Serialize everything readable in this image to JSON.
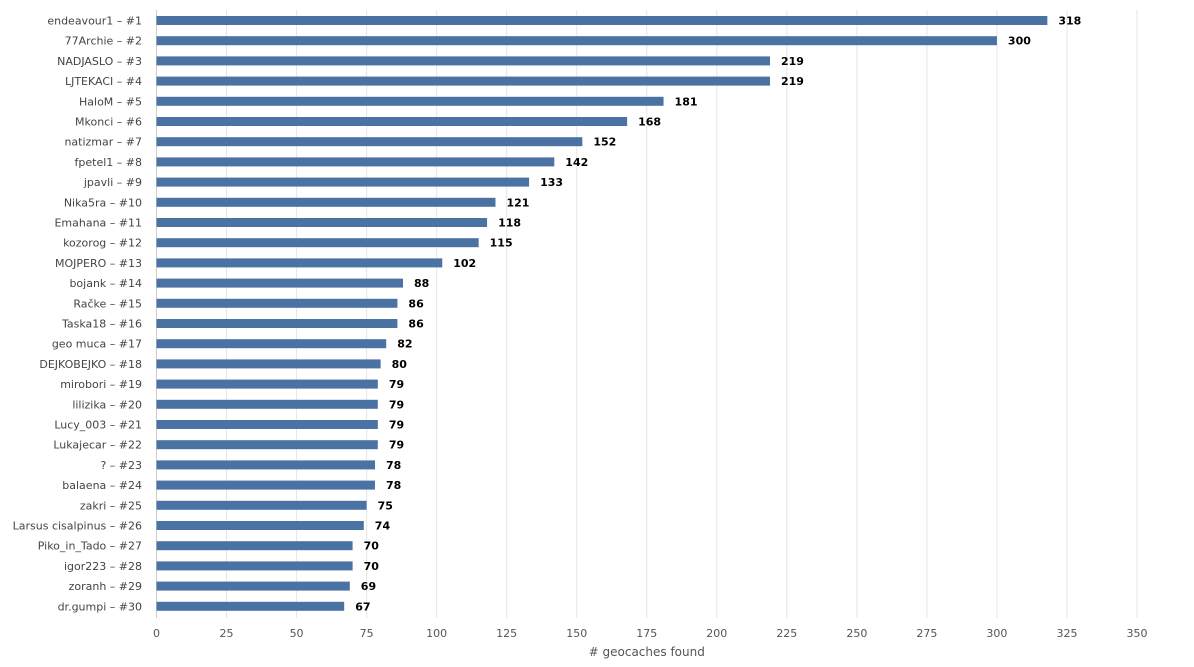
{
  "chart_data": {
    "type": "bar",
    "orientation": "horizontal",
    "title": "",
    "xlabel": "# geocaches found",
    "ylabel": "",
    "categories": [
      "endeavour1 – #1",
      "77Archie – #2",
      "NADJASLO – #3",
      "LJTEKACI – #4",
      "HaloM – #5",
      "Mkonci – #6",
      "natizmar – #7",
      "fpetel1 – #8",
      "jpavli – #9",
      "Nika5ra – #10",
      "Emahana – #11",
      "kozorog – #12",
      "MOJPERO – #13",
      "bojank – #14",
      "Račke – #15",
      "Taska18 – #16",
      "geo muca – #17",
      "DEJKOBEJKO – #18",
      "mirobori – #19",
      "lilizika – #20",
      "Lucy_003 – #21",
      "Lukajecar – #22",
      "? – #23",
      "balaena – #24",
      "zakri – #25",
      "Larsus cisalpinus – #26",
      "Piko_in_Tado – #27",
      "igor223 – #28",
      "zoranh – #29",
      "dr.gumpi – #30"
    ],
    "values": [
      318,
      300,
      219,
      219,
      181,
      168,
      152,
      142,
      133,
      121,
      118,
      115,
      102,
      88,
      86,
      86,
      82,
      80,
      79,
      79,
      79,
      79,
      78,
      78,
      75,
      74,
      70,
      70,
      69,
      67
    ],
    "xlim": [
      0,
      350
    ],
    "xticks": [
      0,
      25,
      50,
      75,
      100,
      125,
      150,
      175,
      200,
      225,
      250,
      275,
      300,
      325,
      350
    ],
    "grid": true,
    "legend": "none",
    "bar_color": "#4a72a2"
  }
}
